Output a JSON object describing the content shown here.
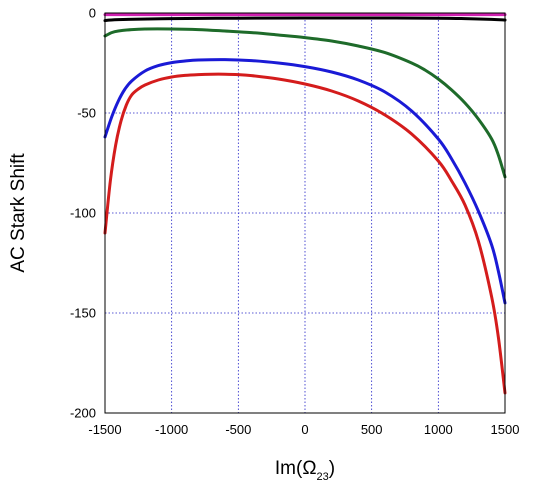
{
  "chart_data": {
    "type": "line",
    "title": "",
    "xlabel": {
      "prefix": "Im(Ω",
      "subscript": "23",
      "suffix": ")"
    },
    "ylabel": "AC Stark Shift",
    "xlim": [
      -1500,
      1500
    ],
    "ylim": [
      -200,
      0
    ],
    "xticks": [
      -1500,
      -1000,
      -500,
      0,
      500,
      1000,
      1500
    ],
    "yticks": [
      0,
      -50,
      -100,
      -150,
      -200
    ],
    "grid": true,
    "legend": "none",
    "series": [
      {
        "color": "#d01fb0",
        "x": [
          -1500,
          -1000,
          -500,
          0,
          500,
          1000,
          1500
        ],
        "y": [
          -0.8,
          -0.8,
          -0.8,
          -0.8,
          -0.8,
          -0.8,
          -0.8
        ]
      },
      {
        "color": "#000000",
        "x": [
          -1500,
          -1400,
          -1000,
          -500,
          0,
          500,
          1000,
          1200,
          1400,
          1500
        ],
        "y": [
          -3.8,
          -3.3,
          -2.8,
          -2.6,
          -2.5,
          -2.5,
          -2.6,
          -2.8,
          -3.2,
          -3.5
        ]
      },
      {
        "color": "#1e6b2a",
        "x": [
          -1500,
          -1450,
          -1400,
          -1300,
          -1200,
          -1000,
          -800,
          -600,
          -400,
          -200,
          0,
          200,
          400,
          600,
          800,
          900,
          1000,
          1100,
          1200,
          1300,
          1400,
          1450,
          1500
        ],
        "y": [
          -11.5,
          -9.8,
          -9,
          -8.3,
          -8,
          -8,
          -8.3,
          -9,
          -9.8,
          -11,
          -12.3,
          -14,
          -16.5,
          -19.8,
          -25,
          -28.5,
          -33,
          -38.5,
          -45,
          -53,
          -63,
          -71,
          -82
        ]
      },
      {
        "color": "#1a1ad6",
        "x": [
          -1500,
          -1450,
          -1400,
          -1350,
          -1300,
          -1200,
          -1100,
          -1000,
          -900,
          -800,
          -600,
          -400,
          -200,
          0,
          200,
          400,
          600,
          800,
          1000,
          1100,
          1200,
          1300,
          1400,
          1450,
          1500
        ],
        "y": [
          -62,
          -52,
          -44,
          -38,
          -34,
          -29,
          -26.3,
          -24.8,
          -24,
          -23.5,
          -23.3,
          -23.8,
          -25,
          -26.8,
          -29.5,
          -33.5,
          -39.5,
          -49,
          -63,
          -73,
          -85,
          -99,
          -116,
          -129,
          -145
        ]
      },
      {
        "color": "#d41c1c",
        "x": [
          -1500,
          -1460,
          -1420,
          -1380,
          -1340,
          -1300,
          -1250,
          -1200,
          -1100,
          -1000,
          -900,
          -800,
          -700,
          -600,
          -500,
          -400,
          -200,
          0,
          200,
          400,
          600,
          800,
          1000,
          1100,
          1200,
          1300,
          1400,
          1450,
          1500
        ],
        "y": [
          -110,
          -84,
          -66,
          -54,
          -46,
          -41,
          -38,
          -36,
          -33.5,
          -32,
          -31.2,
          -30.8,
          -30.6,
          -30.6,
          -30.8,
          -31.3,
          -33,
          -35.5,
          -39,
          -44,
          -51,
          -60.5,
          -74,
          -84,
          -96,
          -114,
          -142,
          -162,
          -190
        ]
      }
    ]
  }
}
